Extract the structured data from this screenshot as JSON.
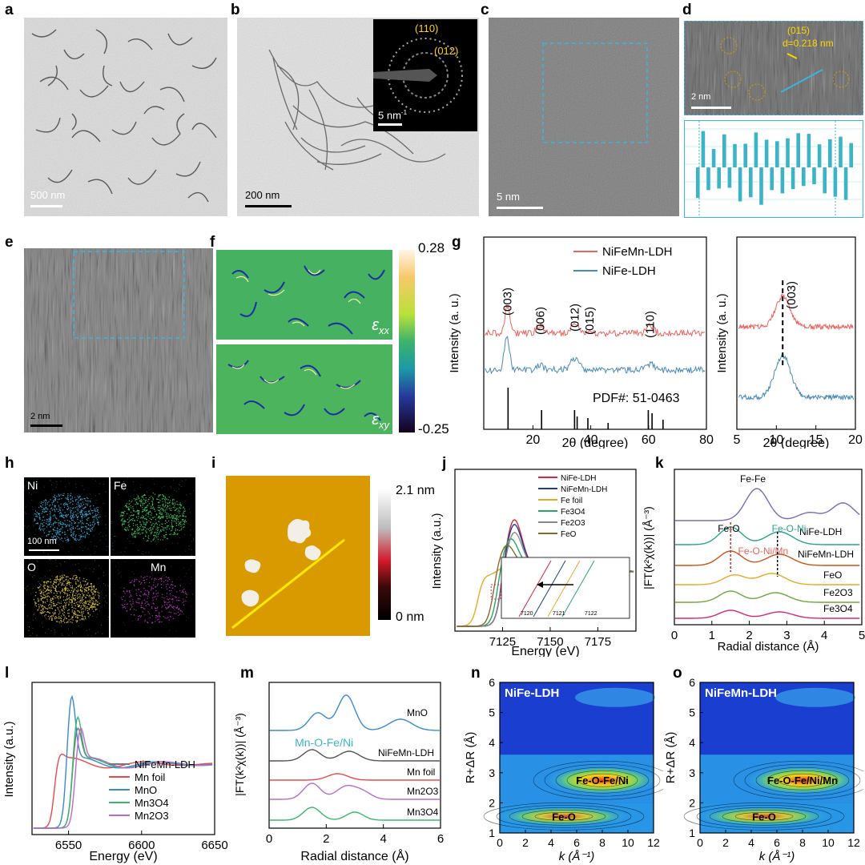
{
  "panels": {
    "a": {
      "label": "a",
      "scalebar": "500 nm"
    },
    "b": {
      "label": "b",
      "scalebar": "200 nm",
      "saed_rings": [
        "(110)",
        "(012)"
      ],
      "saed_scalebar": "5 nm",
      "saed_scalebar_sup": "-1"
    },
    "c": {
      "label": "c",
      "scalebar": "5 nm"
    },
    "d": {
      "label": "d",
      "plane": "(015)",
      "dspacing": "d=0.218 nm",
      "scalebar": "2 nm"
    },
    "e": {
      "label": "e",
      "scalebar": "2 nm"
    },
    "f": {
      "label": "f",
      "cbar_max": "0.28",
      "cbar_min": "-0.25",
      "top_label": "ε",
      "top_sub": "xx",
      "bottom_label": "ε",
      "bottom_sub": "xy"
    },
    "g": {
      "label": "g",
      "ylabel": "Intensity (a. u.)",
      "xlabel": "2θ (degree)",
      "pdf": "PDF#: 51-0463",
      "legend": [
        "NiFeMn-LDH",
        "NiFe-LDH"
      ],
      "peaks": [
        "(003)",
        "(006)",
        "(012)",
        "(015)",
        "(110)"
      ],
      "inset_peak": "(003)"
    },
    "h": {
      "label": "h",
      "elements": [
        "Ni",
        "Fe",
        "O",
        "Mn"
      ],
      "scalebar": "100 nm"
    },
    "i": {
      "label": "i",
      "cbar_max": "2.1 nm",
      "cbar_min": "0 nm"
    },
    "j": {
      "label": "j",
      "ylabel": "Intensity (a.u.)",
      "xlabel": "Energy (eV)",
      "legend": [
        "NiFe-LDH",
        "NiFeMn-LDH",
        "Fe foil",
        "Fe3O4",
        "Fe2O3",
        "FeO"
      ],
      "inset_ticks": [
        "7120",
        "7121",
        "7122"
      ]
    },
    "k": {
      "label": "k",
      "ylabel": "|FT(k²χ(k))| (Å⁻³)",
      "xlabel": "Radial distance (Å)",
      "curves": [
        "Fe-Fe",
        "NiFe-LDH",
        "NiFeMn-LDH",
        "FeO",
        "Fe2O3",
        "Fe3O4"
      ],
      "annot": [
        "Fe-O",
        "Fe-O-Ni",
        "Fe-O-Ni/Mn"
      ]
    },
    "l": {
      "label": "l",
      "ylabel": "Intensity (a.u.)",
      "xlabel": "Energy (eV)",
      "legend": [
        "NiFeMn-LDH",
        "Mn foil",
        "MnO",
        "Mn3O4",
        "Mn2O3"
      ]
    },
    "m": {
      "label": "m",
      "ylabel": "|FT(k²χ(k))| (Å⁻³)",
      "xlabel": "Radial distance (Å)",
      "curves": [
        "MnO",
        "NiFeMn-LDH",
        "Mn foil",
        "Mn2O3",
        "Mn3O4"
      ],
      "annot": "Mn-O-Fe/Ni"
    },
    "n": {
      "label": "n",
      "title": "NiFe-LDH",
      "ylabel": "R+ΔR (Å)",
      "xlabel": "k (Å⁻¹)",
      "annot": [
        "Fe-O-Fe/Ni",
        "Fe-O"
      ]
    },
    "o": {
      "label": "o",
      "title": "NiFeMn-LDH",
      "ylabel": "R+ΔR (Å)",
      "xlabel": "k (Å⁻¹)",
      "annot": [
        "Fe-O-Fe/Ni/Mn",
        "Fe-O"
      ]
    }
  },
  "colors": {
    "red": "#e8645f",
    "blue": "#4a8ab8",
    "cyan": "#3bb5c6",
    "gold": "#d99a00"
  },
  "chart_data": [
    {
      "type": "line",
      "panel": "g",
      "xlim": [
        3,
        80
      ],
      "xticks": [
        20,
        40,
        60,
        80
      ],
      "series": [
        {
          "name": "NiFeMn-LDH"
        },
        {
          "name": "NiFe-LDH"
        }
      ],
      "reference_lines_2theta": [
        11.4,
        23.0,
        34.4,
        35.3,
        39.0,
        46.0,
        59.9,
        61.2,
        65.0
      ]
    },
    {
      "type": "line",
      "panel": "g-inset",
      "xlim": [
        5,
        20
      ],
      "xticks": [
        5,
        10,
        15,
        20
      ],
      "peak_2theta": 10.8
    },
    {
      "type": "line",
      "panel": "j",
      "xlim": [
        7100,
        7195
      ],
      "xticks": [
        7125,
        7150,
        7175
      ]
    },
    {
      "type": "line",
      "panel": "k",
      "xlim": [
        0,
        5
      ],
      "xticks": [
        0,
        1,
        2,
        3,
        4,
        5
      ]
    },
    {
      "type": "line",
      "panel": "l",
      "xlim": [
        6525,
        6650
      ],
      "xticks": [
        6550,
        6600,
        6650
      ]
    },
    {
      "type": "line",
      "panel": "m",
      "xlim": [
        0,
        6
      ],
      "xticks": [
        0,
        2,
        4,
        6
      ]
    },
    {
      "type": "heatmap",
      "panel": "n",
      "xlim": [
        0,
        12
      ],
      "ylim": [
        1,
        6
      ],
      "xticks": [
        0,
        2,
        4,
        6,
        8,
        10,
        12
      ],
      "yticks": [
        1,
        2,
        3,
        4,
        5,
        6
      ]
    },
    {
      "type": "heatmap",
      "panel": "o",
      "xlim": [
        0,
        12
      ],
      "ylim": [
        1,
        6
      ],
      "xticks": [
        0,
        2,
        4,
        6,
        8,
        10,
        12
      ],
      "yticks": [
        1,
        2,
        3,
        4,
        5,
        6
      ]
    }
  ]
}
